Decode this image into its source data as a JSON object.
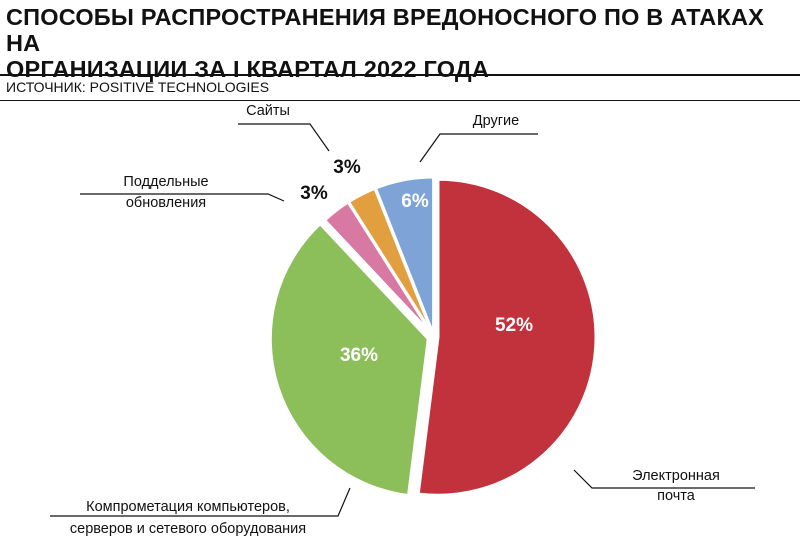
{
  "header": {
    "title_line1": "СПОСОБЫ РАСПРОСТРАНЕНИЯ ВРЕДОНОСНОГО ПО В АТАКАХ НА",
    "title_line2": "ОРГАНИЗАЦИИ ЗА I КВАРТАЛ 2022 ГОДА",
    "source": "ИСТОЧНИК: POSITIVE TECHNOLOGIES"
  },
  "chart_data": {
    "type": "pie",
    "title": "СПОСОБЫ РАСПРОСТРАНЕНИЯ ВРЕДОНОСНОГО ПО В АТАКАХ НА ОРГАНИЗАЦИИ ЗА I КВАРТАЛ 2022 ГОДА",
    "slices": [
      {
        "id": "email",
        "label_lines": [
          "Электронная",
          "почта"
        ],
        "value": 52,
        "display": "52%",
        "color": "#c1323c"
      },
      {
        "id": "compromise",
        "label_lines": [
          "Компрометация компьютеров,",
          "серверов и сетевого оборудования"
        ],
        "value": 36,
        "display": "36%",
        "color": "#8cbf5a"
      },
      {
        "id": "updates",
        "label_lines": [
          "Поддельные",
          "обновления"
        ],
        "value": 3,
        "display": "3%",
        "color": "#d779a3"
      },
      {
        "id": "sites",
        "label_lines": [
          "Сайты"
        ],
        "value": 3,
        "display": "3%",
        "color": "#e19f3f"
      },
      {
        "id": "other",
        "label_lines": [
          "Другие"
        ],
        "value": 6,
        "display": "6%",
        "color": "#7ea3d6"
      }
    ]
  }
}
